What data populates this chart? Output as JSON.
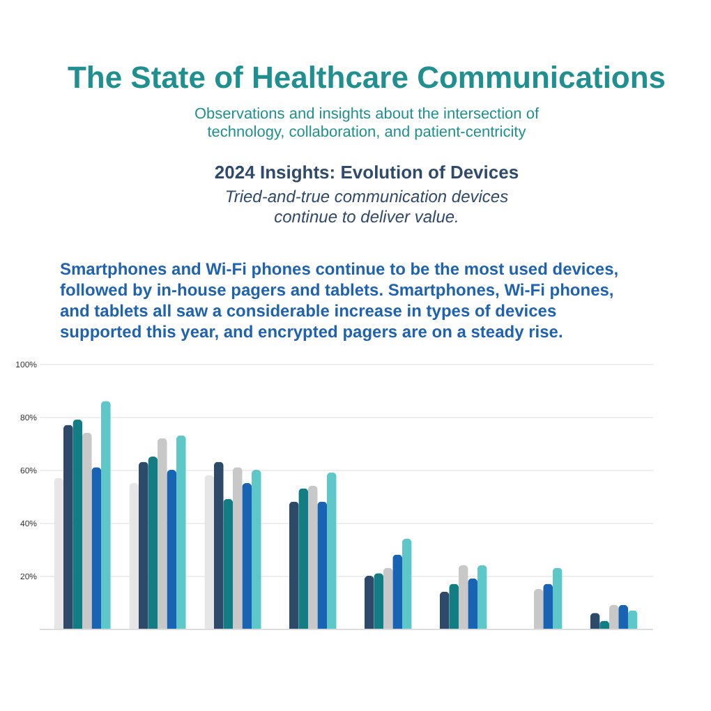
{
  "chart_data": {
    "type": "bar",
    "title": "The State of Healthcare Communications",
    "subtitle": "Observations and insights about the intersection of technology, collaboration, and patient-centricity",
    "annotations": [
      "2024 Insights: Evolution of Devices",
      "Tried-and-true communication devices continue to deliver value.",
      "Smartphones and Wi-Fi phones continue to be the most used devices, followed by in-house pagers and tablets. Smartphones, Wi-Fi phones, and tablets all saw a considerable increase in types of devices supported this year, and encrypted pagers are on a steady rise."
    ],
    "categories": [
      null,
      null,
      null,
      null,
      null,
      null,
      null,
      null
    ],
    "series": [
      {
        "color": "#e6e6e6",
        "values": [
          57,
          55,
          58,
          null,
          null,
          null,
          null,
          null
        ]
      },
      {
        "color": "#2e4a6b",
        "values": [
          77,
          63,
          63,
          48,
          20,
          14,
          null,
          6
        ]
      },
      {
        "color": "#127e84",
        "values": [
          79,
          65,
          49,
          53,
          21,
          17,
          null,
          3
        ]
      },
      {
        "color": "#c8c8c8",
        "values": [
          74,
          72,
          61,
          54,
          23,
          24,
          15,
          9
        ]
      },
      {
        "color": "#1863b4",
        "values": [
          61,
          60,
          55,
          48,
          28,
          19,
          17,
          9
        ]
      },
      {
        "color": "#5ec8c8",
        "values": [
          86,
          73,
          60,
          59,
          34,
          24,
          23,
          7
        ]
      }
    ],
    "ylim": [
      0,
      100
    ],
    "yticks": [
      {
        "value": 0,
        "label": null
      },
      {
        "value": 20,
        "label": "20%"
      },
      {
        "value": 40,
        "label": "40%"
      },
      {
        "value": 60,
        "label": "60%"
      },
      {
        "value": 80,
        "label": "80%"
      },
      {
        "value": 100,
        "label": "100%"
      }
    ],
    "grid": "y",
    "tick_labels": "y"
  }
}
